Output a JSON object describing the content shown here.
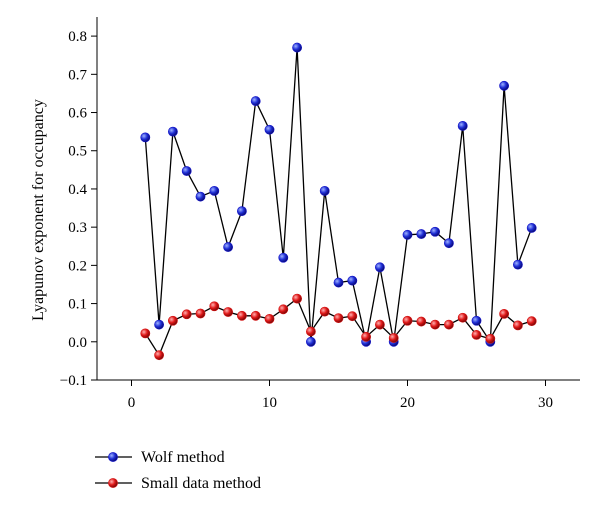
{
  "chart_data": {
    "type": "line",
    "title": "",
    "xlabel": "",
    "ylabel": "Lyapunov exponent for occupancy",
    "xlim": [
      -2.5,
      32.5
    ],
    "ylim": [
      -0.1,
      0.85
    ],
    "xticks": [
      0,
      10,
      20,
      30
    ],
    "xtick_labels": [
      "0",
      "10",
      "20",
      "30"
    ],
    "yticks": [
      -0.1,
      0.0,
      0.1,
      0.2,
      0.3,
      0.4,
      0.5,
      0.6,
      0.7,
      0.8
    ],
    "ytick_labels": [
      "−0.1",
      "0.0",
      "0.1",
      "0.2",
      "0.3",
      "0.4",
      "0.5",
      "0.6",
      "0.7",
      "0.8"
    ],
    "grid": false,
    "legend_position": "bottom-left",
    "x": [
      1,
      2,
      3,
      4,
      5,
      6,
      7,
      8,
      9,
      10,
      11,
      12,
      13,
      14,
      15,
      16,
      17,
      18,
      19,
      20,
      21,
      22,
      23,
      24,
      25,
      26,
      27,
      28,
      29
    ],
    "series": [
      {
        "name": "Wolf method",
        "color": "#1414c8",
        "values": [
          0.535,
          0.045,
          0.55,
          0.447,
          0.38,
          0.395,
          0.248,
          0.342,
          0.63,
          0.555,
          0.22,
          0.77,
          0.0,
          0.395,
          0.155,
          0.16,
          0.0,
          0.195,
          0.0,
          0.28,
          0.282,
          0.288,
          0.258,
          0.565,
          0.055,
          0.0,
          0.67,
          0.202,
          0.298
        ]
      },
      {
        "name": "Small data method",
        "color": "#d41414",
        "values": [
          0.022,
          -0.035,
          0.055,
          0.072,
          0.074,
          0.093,
          0.078,
          0.068,
          0.068,
          0.06,
          0.085,
          0.113,
          0.027,
          0.079,
          0.062,
          0.067,
          0.013,
          0.045,
          0.01,
          0.055,
          0.053,
          0.045,
          0.045,
          0.063,
          0.018,
          0.008,
          0.073,
          0.043,
          0.054
        ]
      }
    ]
  }
}
